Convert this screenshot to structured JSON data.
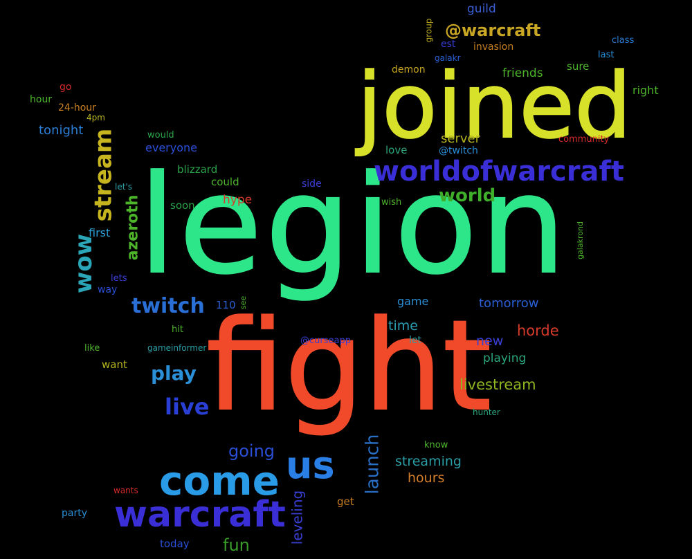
{
  "words": [
    {
      "text": "legion",
      "color": "#2ee68a"
    },
    {
      "text": "fight",
      "color": "#f04a2a"
    },
    {
      "text": "joined",
      "color": "#d8e12a"
    },
    {
      "text": "worldofwarcraft",
      "color": "#3a2fd6"
    },
    {
      "text": "come",
      "color": "#2a9be6"
    },
    {
      "text": "warcraft",
      "color": "#3a2fd6"
    },
    {
      "text": "us",
      "color": "#2a7fe6"
    },
    {
      "text": "@warcraft",
      "color": "#c9a623"
    },
    {
      "text": "stream",
      "color": "#c7b520"
    },
    {
      "text": "wow",
      "color": "#2aa6b8"
    },
    {
      "text": "twitch",
      "color": "#2a6fd6"
    },
    {
      "text": "live",
      "color": "#2a3fd6"
    },
    {
      "text": "play",
      "color": "#2a8fd6"
    },
    {
      "text": "going",
      "color": "#2a4fd6"
    },
    {
      "text": "launch",
      "color": "#2a6fc6"
    },
    {
      "text": "world",
      "color": "#3fae2a"
    },
    {
      "text": "azeroth",
      "color": "#4cb52a"
    },
    {
      "text": "livestream",
      "color": "#8fb520"
    },
    {
      "text": "streaming",
      "color": "#2a9fa6"
    },
    {
      "text": "horde",
      "color": "#d63a2a"
    },
    {
      "text": "hours",
      "color": "#d67f2a"
    },
    {
      "text": "fun",
      "color": "#3a9f2a"
    },
    {
      "text": "tomorrow",
      "color": "#2a5fd6"
    },
    {
      "text": "leveling",
      "color": "#3a3fd6"
    },
    {
      "text": "tonight",
      "color": "#2a7fd6"
    },
    {
      "text": "server",
      "color": "#b5b520"
    },
    {
      "text": "new",
      "color": "#3a3fd6"
    },
    {
      "text": "time",
      "color": "#2a9fb5"
    },
    {
      "text": "playing",
      "color": "#2aa67f"
    },
    {
      "text": "guild",
      "color": "#3a5fd6"
    },
    {
      "text": "friends",
      "color": "#4cb52a"
    },
    {
      "text": "game",
      "color": "#2a8fd6"
    },
    {
      "text": "hype",
      "color": "#d63a2a"
    },
    {
      "text": "everyone",
      "color": "#2a4fd6"
    },
    {
      "text": "first",
      "color": "#2a9fd6"
    },
    {
      "text": "right",
      "color": "#4cb52a"
    },
    {
      "text": "blizzard",
      "color": "#2aa64a"
    },
    {
      "text": "could",
      "color": "#4cb52a"
    },
    {
      "text": "soon",
      "color": "#2aa64a"
    },
    {
      "text": "side",
      "color": "#3a3fd6"
    },
    {
      "text": "love",
      "color": "#2aa67f"
    },
    {
      "text": "@twitch",
      "color": "#2a8fd6"
    },
    {
      "text": "demon",
      "color": "#c7a520"
    },
    {
      "text": "invasion",
      "color": "#c77f20"
    },
    {
      "text": "est",
      "color": "#3a3fd6"
    },
    {
      "text": "sure",
      "color": "#4cb52a"
    },
    {
      "text": "last",
      "color": "#2a8fd6"
    },
    {
      "text": "class",
      "color": "#2a7fd6"
    },
    {
      "text": "community",
      "color": "#d62a2a"
    },
    {
      "text": "galakr",
      "color": "#2a5fd6"
    },
    {
      "text": "group",
      "color": "#b5a520"
    },
    {
      "text": "go",
      "color": "#d62a2a"
    },
    {
      "text": "hour",
      "color": "#4cb52a"
    },
    {
      "text": "24-hour",
      "color": "#c77f20"
    },
    {
      "text": "4pm",
      "color": "#b5b520"
    },
    {
      "text": "would",
      "color": "#2aa64a"
    },
    {
      "text": "let's",
      "color": "#2a9fa6"
    },
    {
      "text": "wish",
      "color": "#4cb52a"
    },
    {
      "text": "lets",
      "color": "#3a3fd6"
    },
    {
      "text": "way",
      "color": "#2a4fd6"
    },
    {
      "text": "110",
      "color": "#2a5fd6"
    },
    {
      "text": "see",
      "color": "#4cb52a"
    },
    {
      "text": "hit",
      "color": "#4cb52a"
    },
    {
      "text": "let",
      "color": "#2a9fa6"
    },
    {
      "text": "@curseapp",
      "color": "#3a3fd6"
    },
    {
      "text": "like",
      "color": "#4cb52a"
    },
    {
      "text": "gameinformer",
      "color": "#2a9fa6"
    },
    {
      "text": "want",
      "color": "#b5b520"
    },
    {
      "text": "hunter",
      "color": "#2aa67f"
    },
    {
      "text": "know",
      "color": "#4cb52a"
    },
    {
      "text": "galakrond",
      "color": "#4cb52a"
    },
    {
      "text": "wants",
      "color": "#d62a2a"
    },
    {
      "text": "party",
      "color": "#2a8fd6"
    },
    {
      "text": "today",
      "color": "#2a4fd6"
    },
    {
      "text": "get",
      "color": "#c77f20"
    }
  ]
}
